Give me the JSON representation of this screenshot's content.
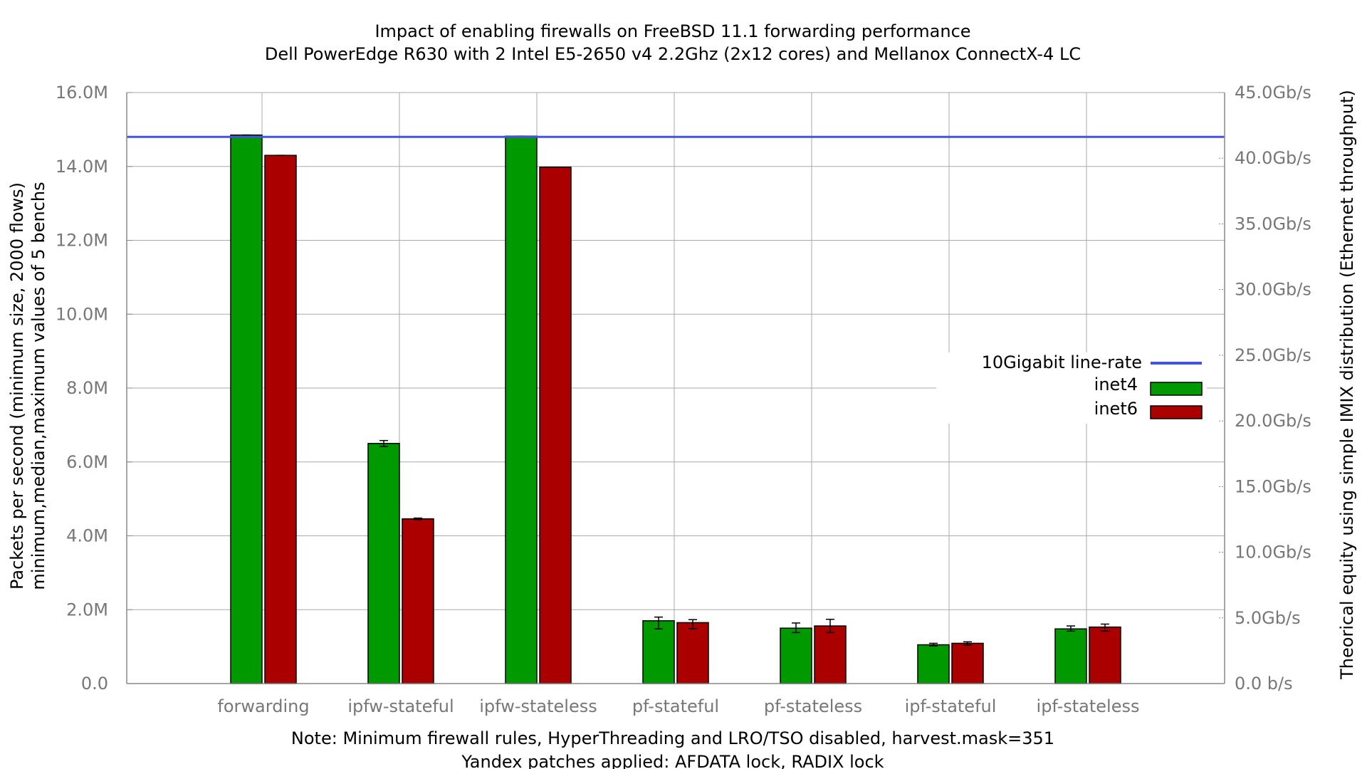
{
  "chart_data": {
    "type": "bar",
    "title": "Impact of enabling firewalls on FreeBSD 11.1 forwarding performance",
    "subtitle": "Dell PowerEdge R630 with 2 Intel E5-2650 v4 2.2Ghz (2x12 cores) and Mellanox ConnectX-4 LC",
    "ylabel": "Packets per second (minimum size, 2000 flows)",
    "ylabel2": "minimum,median,maximum values of 5 benchs",
    "y2label": "Theorical equity using simple IMIX distribution (Ethernet throughput)",
    "note": "Note: Minimum firewall rules, HyperThreading and LRO/TSO disabled, harvest.mask=351",
    "note2": "Yandex patches applied: AFDATA lock, RADIX lock",
    "categories": [
      "forwarding",
      "ipfw-stateful",
      "ipfw-stateless",
      "pf-stateful",
      "pf-stateless",
      "ipf-stateful",
      "ipf-stateless"
    ],
    "ylim": [
      0,
      16000000
    ],
    "y_ticks": [
      0,
      2000000,
      4000000,
      6000000,
      8000000,
      10000000,
      12000000,
      14000000,
      16000000
    ],
    "y_tick_labels": [
      "0.0",
      "2.0M",
      "4.0M",
      "6.0M",
      "8.0M",
      "10.0M",
      "12.0M",
      "14.0M",
      "16.0M"
    ],
    "y2lim": [
      0,
      45
    ],
    "y2_ticks": [
      0,
      5,
      10,
      15,
      20,
      25,
      30,
      35,
      40,
      45
    ],
    "y2_tick_labels": [
      "0.0 b/s",
      "5.0Gb/s",
      "10.0Gb/s",
      "15.0Gb/s",
      "20.0Gb/s",
      "25.0Gb/s",
      "30.0Gb/s",
      "35.0Gb/s",
      "40.0Gb/s",
      "45.0Gb/s"
    ],
    "grid": true,
    "legend_position": "right",
    "series": [
      {
        "name": "inet4",
        "color": "#009900",
        "values": [
          14850000,
          6500000,
          14820000,
          1700000,
          1500000,
          1050000,
          1480000
        ],
        "min": [
          14850000,
          6420000,
          14820000,
          1480000,
          1380000,
          1020000,
          1420000
        ],
        "max": [
          14850000,
          6580000,
          14820000,
          1800000,
          1640000,
          1090000,
          1560000
        ]
      },
      {
        "name": "inet6",
        "color": "#aa0000",
        "values": [
          14300000,
          4460000,
          13980000,
          1650000,
          1560000,
          1090000,
          1530000
        ],
        "min": [
          14300000,
          4440000,
          13980000,
          1480000,
          1380000,
          1040000,
          1420000
        ],
        "max": [
          14300000,
          4480000,
          13980000,
          1730000,
          1740000,
          1130000,
          1610000
        ]
      }
    ],
    "line_rate": {
      "name": "10Gigabit line-rate",
      "value": 14800000,
      "color": "#4455dd"
    }
  }
}
